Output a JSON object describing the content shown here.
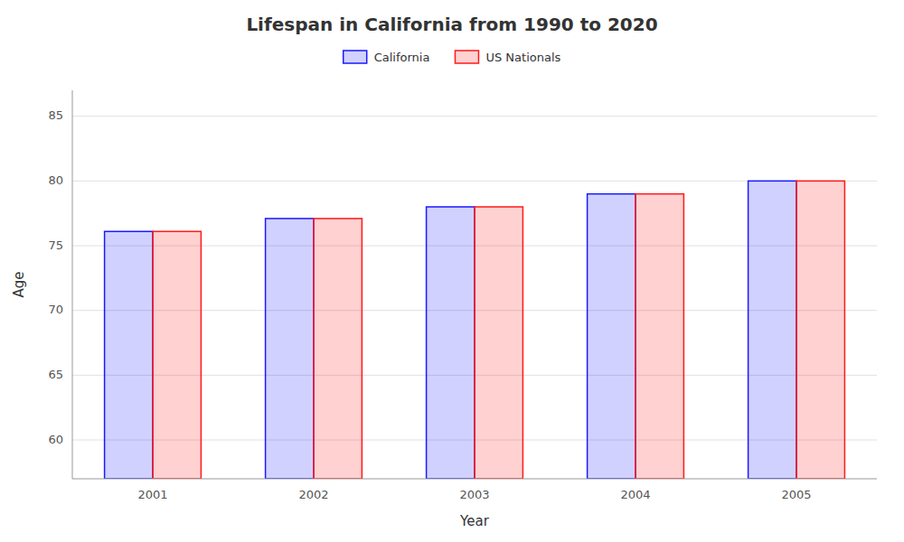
{
  "chart_data": {
    "type": "bar",
    "title": "Lifespan in California from 1990 to 2020",
    "x_label": "Year",
    "y_label": "Age",
    "categories": [
      "2001",
      "2002",
      "2003",
      "2004",
      "2005"
    ],
    "series": [
      {
        "name": "California",
        "color": "#1a1aff",
        "values": [
          76.1,
          77.1,
          78.0,
          79.0,
          80.0
        ]
      },
      {
        "name": "US Nationals",
        "color": "#ff1a1a",
        "values": [
          76.1,
          77.1,
          78.0,
          79.0,
          80.0
        ]
      }
    ],
    "ylim": [
      57,
      87
    ],
    "yticks": [
      60,
      65,
      70,
      75,
      80,
      85
    ],
    "grid": true,
    "legend": "top"
  }
}
